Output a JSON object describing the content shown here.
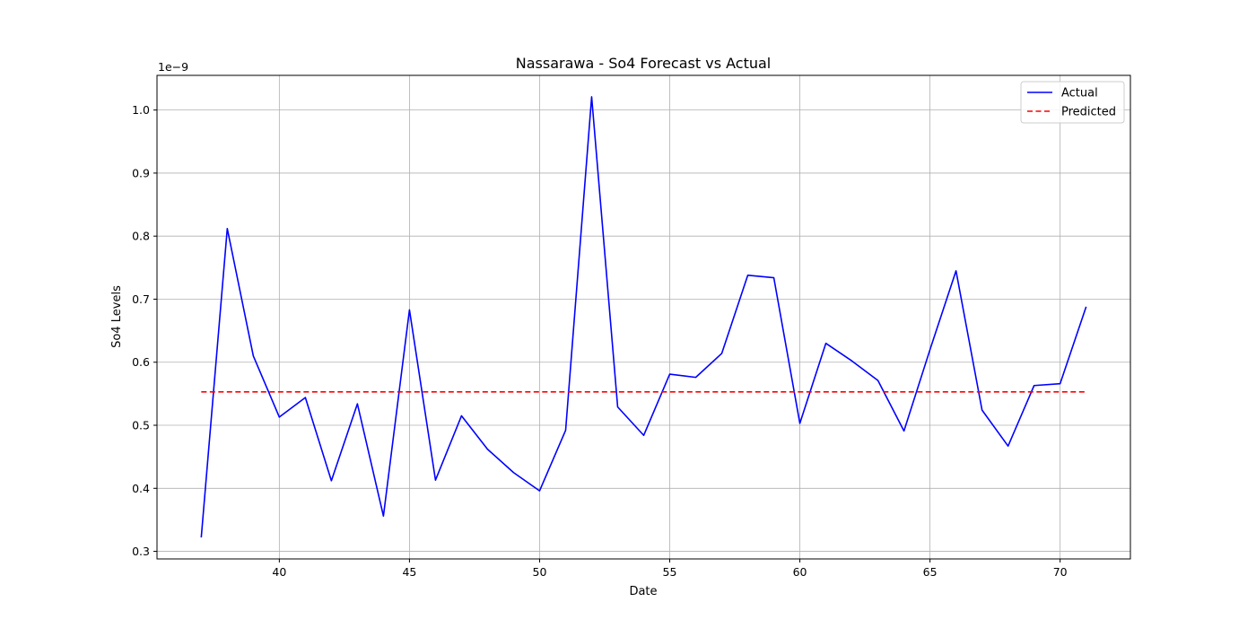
{
  "chart_data": {
    "type": "line",
    "title": "Nassarawa - So4 Forecast vs Actual",
    "xlabel": "Date",
    "ylabel": "So4 Levels",
    "y_offset_text": "1e−9",
    "xlim": [
      35.3,
      72.7
    ],
    "ylim": [
      0.288,
      1.055
    ],
    "x_ticks": [
      40,
      45,
      50,
      55,
      60,
      65,
      70
    ],
    "y_ticks": [
      0.3,
      0.4,
      0.5,
      0.6,
      0.7,
      0.8,
      0.9,
      1.0
    ],
    "grid": true,
    "legend_position": "top-right",
    "x": [
      37,
      38,
      39,
      40,
      41,
      42,
      43,
      44,
      45,
      46,
      47,
      48,
      49,
      50,
      51,
      52,
      53,
      54,
      55,
      56,
      57,
      58,
      59,
      60,
      61,
      62,
      63,
      64,
      65,
      66,
      67,
      68,
      69,
      70,
      71
    ],
    "series": [
      {
        "name": "Actual",
        "color": "#0000ff",
        "style": "solid",
        "values": [
          0.322,
          0.812,
          0.61,
          0.513,
          0.544,
          0.412,
          0.534,
          0.356,
          0.683,
          0.413,
          0.515,
          0.462,
          0.425,
          0.396,
          0.492,
          1.021,
          0.529,
          0.484,
          0.581,
          0.576,
          0.614,
          0.738,
          0.734,
          0.503,
          0.63,
          0.602,
          0.571,
          0.491,
          0.62,
          0.745,
          0.524,
          0.467,
          0.563,
          0.566,
          0.688
        ]
      },
      {
        "name": "Predicted",
        "color": "#ff0000",
        "style": "dashed",
        "values": [
          0.553,
          0.553,
          0.553,
          0.553,
          0.553,
          0.553,
          0.553,
          0.553,
          0.553,
          0.553,
          0.553,
          0.553,
          0.553,
          0.553,
          0.553,
          0.553,
          0.553,
          0.553,
          0.553,
          0.553,
          0.553,
          0.553,
          0.553,
          0.553,
          0.553,
          0.553,
          0.553,
          0.553,
          0.553,
          0.553,
          0.553,
          0.553,
          0.553,
          0.553,
          0.553
        ]
      }
    ]
  }
}
